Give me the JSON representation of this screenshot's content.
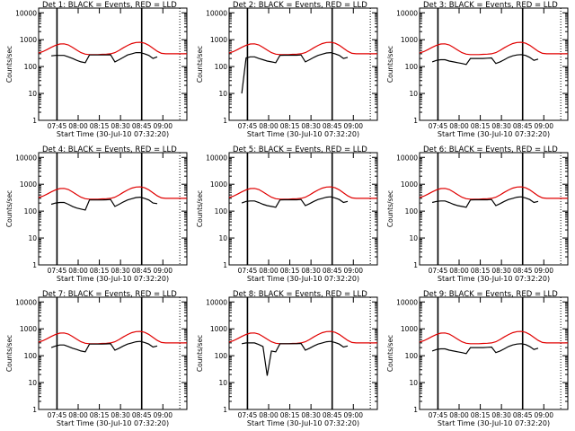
{
  "colors": {
    "events": "#000000",
    "lld": "#e00000",
    "axis": "#000000",
    "background": "#ffffff"
  },
  "chart_data": {
    "type": "line",
    "layout": "3x3 grid",
    "yscale": "log",
    "ylim": [
      1,
      15000
    ],
    "ylabel": "Counts/sec",
    "xlabel": "Start Time (30-Jul-10 07:32:20)",
    "x_ticks": [
      "07:45",
      "08:00",
      "08:15",
      "08:30",
      "08:45",
      "09:00"
    ],
    "y_ticks": [
      "1",
      "10",
      "100",
      "1000",
      "10000"
    ],
    "x_minutes_from_start": [
      0,
      3,
      6,
      9,
      12,
      15,
      18,
      21,
      24,
      27,
      30,
      33,
      36,
      39,
      42,
      45,
      48,
      51,
      54,
      57,
      60,
      63,
      66,
      69,
      72,
      75,
      78,
      81,
      84,
      87,
      90,
      93,
      96,
      99,
      102,
      105
    ],
    "lld_series": [
      320,
      360,
      430,
      520,
      620,
      690,
      700,
      640,
      520,
      410,
      330,
      290,
      280,
      280,
      280,
      285,
      290,
      300,
      330,
      400,
      500,
      610,
      720,
      790,
      800,
      740,
      620,
      480,
      370,
      310,
      300,
      300,
      300,
      300,
      300,
      300
    ],
    "panels": [
      {
        "title": "Det 1: BLACK = Events, RED = LLD",
        "events": [
          null,
          null,
          null,
          250,
          260,
          260,
          260,
          230,
          200,
          170,
          150,
          140,
          270,
          270,
          270,
          270,
          270,
          275,
          150,
          180,
          220,
          270,
          300,
          330,
          330,
          300,
          260,
          200,
          230,
          null,
          null,
          null,
          null,
          null,
          null,
          null
        ]
      },
      {
        "title": "Det 2: BLACK = Events, RED = LLD",
        "events": [
          null,
          null,
          null,
          10,
          210,
          230,
          230,
          200,
          180,
          160,
          150,
          140,
          260,
          265,
          265,
          265,
          265,
          270,
          150,
          180,
          220,
          260,
          290,
          320,
          330,
          300,
          260,
          200,
          220,
          null,
          null,
          null,
          null,
          null,
          null,
          null
        ]
      },
      {
        "title": "Det 3: BLACK = Events, RED = LLD",
        "events": [
          null,
          null,
          null,
          150,
          170,
          180,
          180,
          160,
          150,
          140,
          130,
          120,
          200,
          200,
          200,
          200,
          205,
          210,
          130,
          150,
          180,
          220,
          250,
          270,
          280,
          260,
          220,
          170,
          190,
          null,
          null,
          null,
          null,
          null,
          null,
          null
        ]
      },
      {
        "title": "Det 4: BLACK = Events, RED = LLD",
        "events": [
          null,
          null,
          null,
          180,
          200,
          210,
          210,
          180,
          150,
          130,
          120,
          110,
          260,
          260,
          260,
          260,
          265,
          270,
          150,
          180,
          220,
          260,
          290,
          320,
          330,
          300,
          260,
          200,
          190,
          null,
          null,
          null,
          null,
          null,
          null,
          null
        ]
      },
      {
        "title": "Det 5: BLACK = Events, RED = LLD",
        "events": [
          null,
          null,
          null,
          200,
          230,
          240,
          240,
          210,
          180,
          160,
          150,
          140,
          260,
          265,
          265,
          265,
          265,
          270,
          160,
          190,
          230,
          270,
          300,
          330,
          340,
          310,
          270,
          210,
          230,
          null,
          null,
          null,
          null,
          null,
          null,
          null
        ]
      },
      {
        "title": "Det 6: BLACK = Events, RED = LLD",
        "events": [
          null,
          null,
          null,
          210,
          230,
          240,
          240,
          210,
          180,
          160,
          150,
          140,
          260,
          265,
          265,
          265,
          265,
          270,
          160,
          190,
          230,
          270,
          300,
          330,
          340,
          310,
          270,
          210,
          230,
          null,
          null,
          null,
          null,
          null,
          null,
          null
        ]
      },
      {
        "title": "Det 7: BLACK = Events, RED = LLD",
        "events": [
          null,
          null,
          null,
          200,
          230,
          250,
          250,
          220,
          190,
          170,
          150,
          140,
          270,
          270,
          270,
          270,
          275,
          280,
          160,
          190,
          230,
          270,
          300,
          330,
          340,
          310,
          270,
          210,
          230,
          null,
          null,
          null,
          null,
          null,
          null,
          null
        ]
      },
      {
        "title": "Det 8: BLACK = Events, RED = LLD",
        "events": [
          null,
          null,
          null,
          280,
          300,
          300,
          300,
          260,
          220,
          18,
          150,
          140,
          280,
          280,
          280,
          280,
          280,
          285,
          160,
          190,
          230,
          270,
          300,
          330,
          340,
          310,
          270,
          210,
          230,
          null,
          null,
          null,
          null,
          null,
          null,
          null
        ]
      },
      {
        "title": "Det 9: BLACK = Events, RED = LLD",
        "events": [
          null,
          null,
          null,
          150,
          170,
          180,
          180,
          160,
          150,
          140,
          130,
          120,
          200,
          200,
          200,
          200,
          205,
          210,
          130,
          150,
          180,
          220,
          250,
          270,
          280,
          260,
          220,
          170,
          190,
          null,
          null,
          null,
          null,
          null,
          null,
          null
        ]
      }
    ]
  }
}
